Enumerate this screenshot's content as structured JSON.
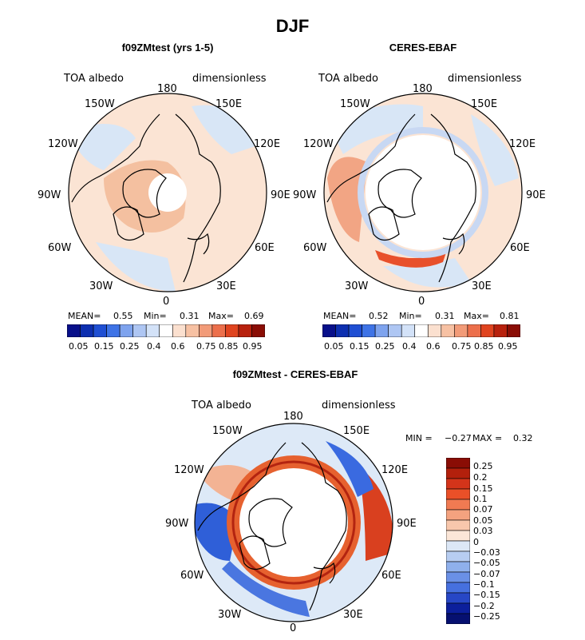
{
  "title": "DJF",
  "colors": {
    "dark_blue": "#08108a",
    "blue": "#2c5fe0",
    "light_blue": "#cfe0f7",
    "cream": "#fbe7d7",
    "peach": "#f7c8a9",
    "orange_red": "#e8502b",
    "dark_red": "#8a0d05"
  },
  "panel_top_left": {
    "title": "f09ZMtest (yrs 1-5)",
    "variable": "TOA albedo",
    "units": "dimensionless",
    "lon_labels": [
      "180",
      "150E",
      "120E",
      "90E",
      "60E",
      "30E",
      "0",
      "30W",
      "60W",
      "90W",
      "120W",
      "150W"
    ],
    "stats": {
      "mean_label": "MEAN=",
      "mean": "0.55",
      "min_label": "Min=",
      "min": "0.31",
      "max_label": "Max=",
      "max": "0.69"
    },
    "colorbar_labels": [
      "0.05",
      "0.15",
      "0.25",
      "0.4",
      "0.6",
      "0.75",
      "0.85",
      "0.95"
    ]
  },
  "panel_top_right": {
    "title": "CERES-EBAF",
    "variable": "TOA albedo",
    "units": "dimensionless",
    "lon_labels": [
      "180",
      "150E",
      "120E",
      "90E",
      "60E",
      "30E",
      "0",
      "30W",
      "60W",
      "90W",
      "120W",
      "150W"
    ],
    "stats": {
      "mean_label": "MEAN=",
      "mean": "0.52",
      "min_label": "Min=",
      "min": "0.31",
      "max_label": "Max=",
      "max": "0.81"
    },
    "colorbar_labels": [
      "0.05",
      "0.15",
      "0.25",
      "0.4",
      "0.6",
      "0.75",
      "0.85",
      "0.95"
    ]
  },
  "panel_bottom": {
    "title": "f09ZMtest - CERES-EBAF",
    "variable": "TOA albedo",
    "units": "dimensionless",
    "lon_labels": [
      "180",
      "150E",
      "120E",
      "90E",
      "60E",
      "30E",
      "0",
      "30W",
      "60W",
      "90W",
      "120W",
      "150W"
    ],
    "stats": {
      "min_label": "MIN =",
      "min": "−0.27",
      "max_label": "MAX =",
      "max": "0.32"
    },
    "colorbar_labels": [
      "0.25",
      "0.2",
      "0.15",
      "0.1",
      "0.07",
      "0.05",
      "0.03",
      "0",
      "−0.03",
      "−0.05",
      "−0.07",
      "−0.1",
      "−0.15",
      "−0.2",
      "−0.25"
    ]
  }
}
